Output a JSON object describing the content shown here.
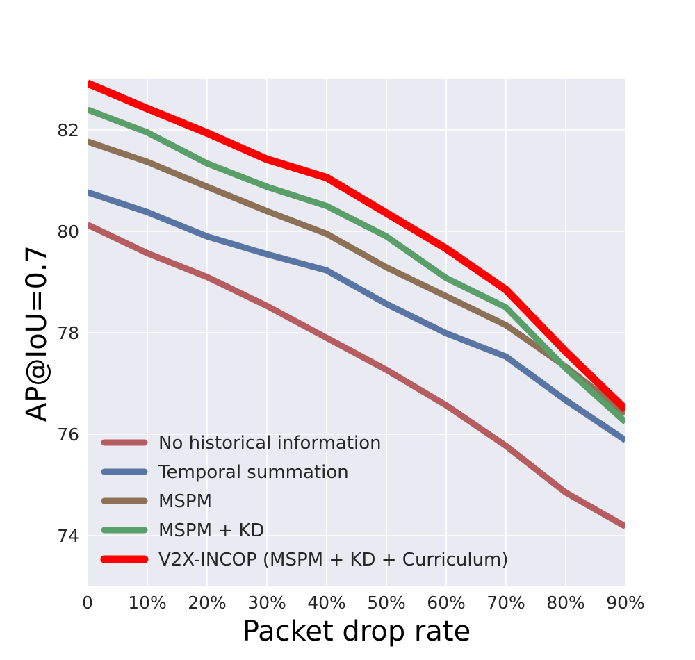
{
  "chart_data": {
    "type": "line",
    "xlabel": "Packet drop rate",
    "ylabel": "AP@IoU=0.7",
    "categories": [
      "0",
      "10%",
      "20%",
      "30%",
      "40%",
      "50%",
      "60%",
      "70%",
      "80%",
      "90%"
    ],
    "ylim": [
      73.0,
      83.0
    ],
    "yticks": [
      74,
      76,
      78,
      80,
      82
    ],
    "grid": true,
    "legend_position": "lower-left",
    "series": [
      {
        "name": "No historical information",
        "color": "#b55d60",
        "values": [
          80.13,
          79.57,
          79.1,
          78.53,
          77.9,
          77.27,
          76.57,
          75.77,
          74.85,
          74.18
        ]
      },
      {
        "name": "Temporal summation",
        "color": "#5975a4",
        "values": [
          80.77,
          80.38,
          79.9,
          79.55,
          79.23,
          78.57,
          77.99,
          77.53,
          76.67,
          75.88
        ]
      },
      {
        "name": "MSPM",
        "color": "#8c7156",
        "values": [
          81.77,
          81.37,
          80.88,
          80.4,
          79.95,
          79.29,
          78.72,
          78.15,
          77.33,
          76.41
        ]
      },
      {
        "name": "MSPM + KD",
        "color": "#5a9e6a",
        "values": [
          82.4,
          81.95,
          81.34,
          80.88,
          80.5,
          79.9,
          79.08,
          78.5,
          77.3,
          76.24
        ]
      },
      {
        "name": "V2X-INCOP (MSPM + KD + Curriculum)",
        "color": "#ff0000",
        "values": [
          82.92,
          82.42,
          81.94,
          81.42,
          81.06,
          80.36,
          79.66,
          78.85,
          77.63,
          76.49
        ]
      }
    ]
  }
}
